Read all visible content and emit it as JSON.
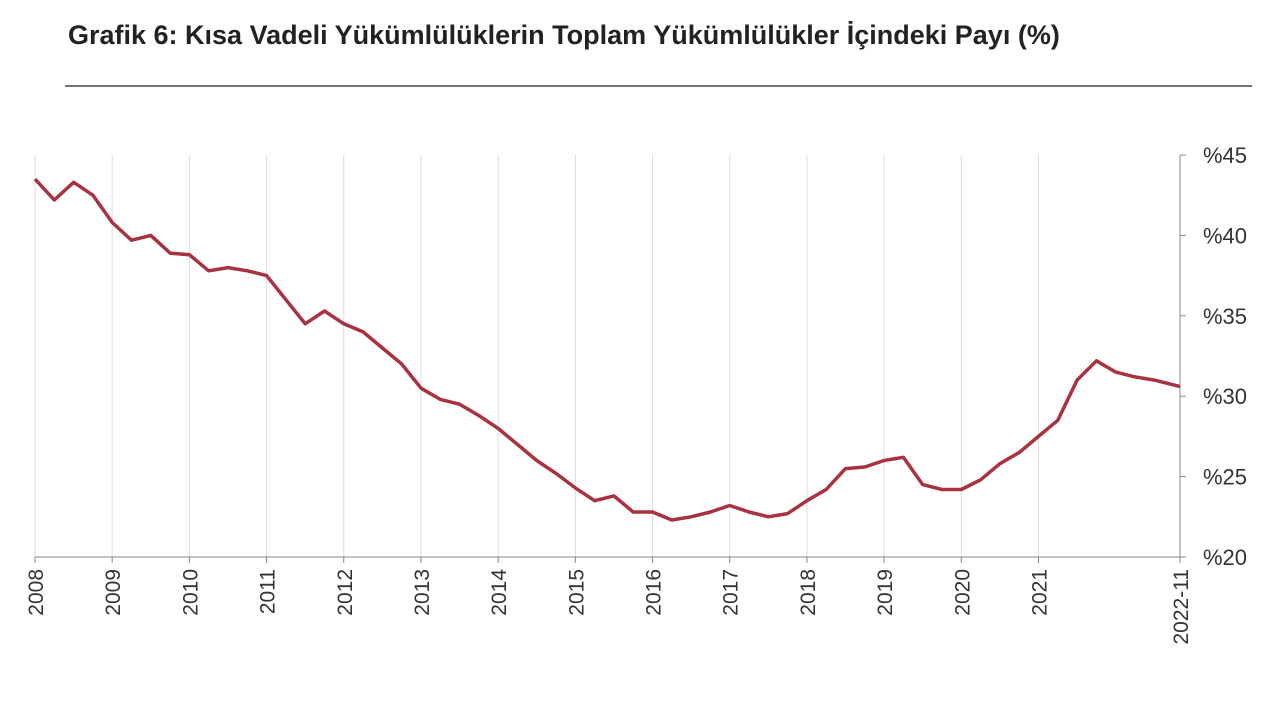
{
  "chart_data": {
    "type": "line",
    "title": "Grafik 6: Kısa Vadeli Yükümlülüklerin Toplam Yükümlülükler İçindeki Payı (%)",
    "x": [
      "2008-01",
      "2008-04",
      "2008-07",
      "2008-10",
      "2009-01",
      "2009-04",
      "2009-07",
      "2009-10",
      "2010-01",
      "2010-04",
      "2010-07",
      "2010-10",
      "2011-01",
      "2011-04",
      "2011-07",
      "2011-10",
      "2012-01",
      "2012-04",
      "2012-07",
      "2012-10",
      "2013-01",
      "2013-04",
      "2013-07",
      "2013-10",
      "2014-01",
      "2014-04",
      "2014-07",
      "2014-10",
      "2015-01",
      "2015-04",
      "2015-07",
      "2015-10",
      "2016-01",
      "2016-04",
      "2016-07",
      "2016-10",
      "2017-01",
      "2017-04",
      "2017-07",
      "2017-10",
      "2018-01",
      "2018-04",
      "2018-07",
      "2018-10",
      "2019-01",
      "2019-04",
      "2019-07",
      "2019-10",
      "2020-01",
      "2020-04",
      "2020-07",
      "2020-10",
      "2021-01",
      "2021-04",
      "2021-07",
      "2021-10",
      "2022-01",
      "2022-04",
      "2022-07",
      "2022-10",
      "2022-11"
    ],
    "series": [
      {
        "color": "#a8323f",
        "values": [
          43.5,
          42.2,
          43.3,
          42.5,
          40.8,
          39.7,
          40.0,
          38.9,
          38.8,
          37.8,
          38.0,
          37.8,
          37.5,
          36.0,
          34.5,
          35.3,
          34.5,
          34.0,
          33.0,
          32.0,
          30.5,
          29.8,
          29.5,
          28.8,
          28.0,
          27.0,
          26.0,
          25.2,
          24.3,
          23.5,
          23.8,
          22.8,
          22.8,
          22.3,
          22.5,
          22.8,
          23.2,
          22.8,
          22.5,
          22.7,
          23.5,
          24.2,
          25.5,
          25.6,
          26.0,
          26.2,
          24.5,
          24.2,
          24.2,
          24.8,
          25.8,
          26.5,
          27.5,
          28.5,
          31.0,
          32.2,
          31.5,
          31.2,
          31.0,
          30.7,
          30.6
        ]
      }
    ],
    "xticks": [
      "2008",
      "2009",
      "2010",
      "2011",
      "2012",
      "2013",
      "2014",
      "2015",
      "2016",
      "2017",
      "2018",
      "2019",
      "2020",
      "2021",
      "2022-11"
    ],
    "ylim": [
      20,
      45
    ],
    "yticks": [
      {
        "value": 20,
        "label": "%20"
      },
      {
        "value": 25,
        "label": "%25"
      },
      {
        "value": 30,
        "label": "%30"
      },
      {
        "value": 35,
        "label": "%35"
      },
      {
        "value": 40,
        "label": "%40"
      },
      {
        "value": 45,
        "label": "%45"
      }
    ],
    "grid": true
  }
}
